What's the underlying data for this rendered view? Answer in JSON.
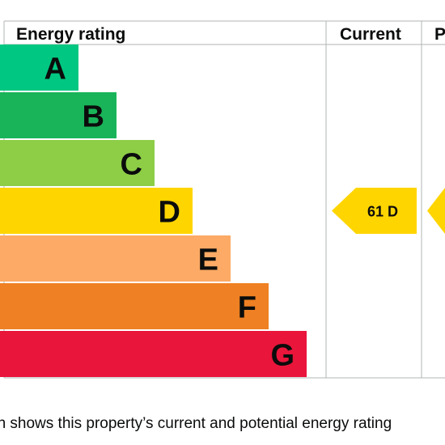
{
  "chart_data": {
    "type": "bar",
    "headers": {
      "rating": "Energy rating",
      "current": "Current",
      "potential": "P"
    },
    "bands": [
      {
        "letter": "A",
        "color": "#00c781"
      },
      {
        "letter": "B",
        "color": "#19b459"
      },
      {
        "letter": "C",
        "color": "#8dce46"
      },
      {
        "letter": "D",
        "color": "#ffd500"
      },
      {
        "letter": "E",
        "color": "#fcaa65"
      },
      {
        "letter": "F",
        "color": "#ef8023"
      },
      {
        "letter": "G",
        "color": "#e9153b"
      }
    ],
    "current": {
      "score": 61,
      "band": "D",
      "label": "61 D",
      "color": "#ffd500"
    },
    "potential": {
      "band": "D",
      "color": "#ffd500"
    },
    "grid_color": "#b1b4b6"
  },
  "caption": "ph shows this property’s current and potential energy rating"
}
